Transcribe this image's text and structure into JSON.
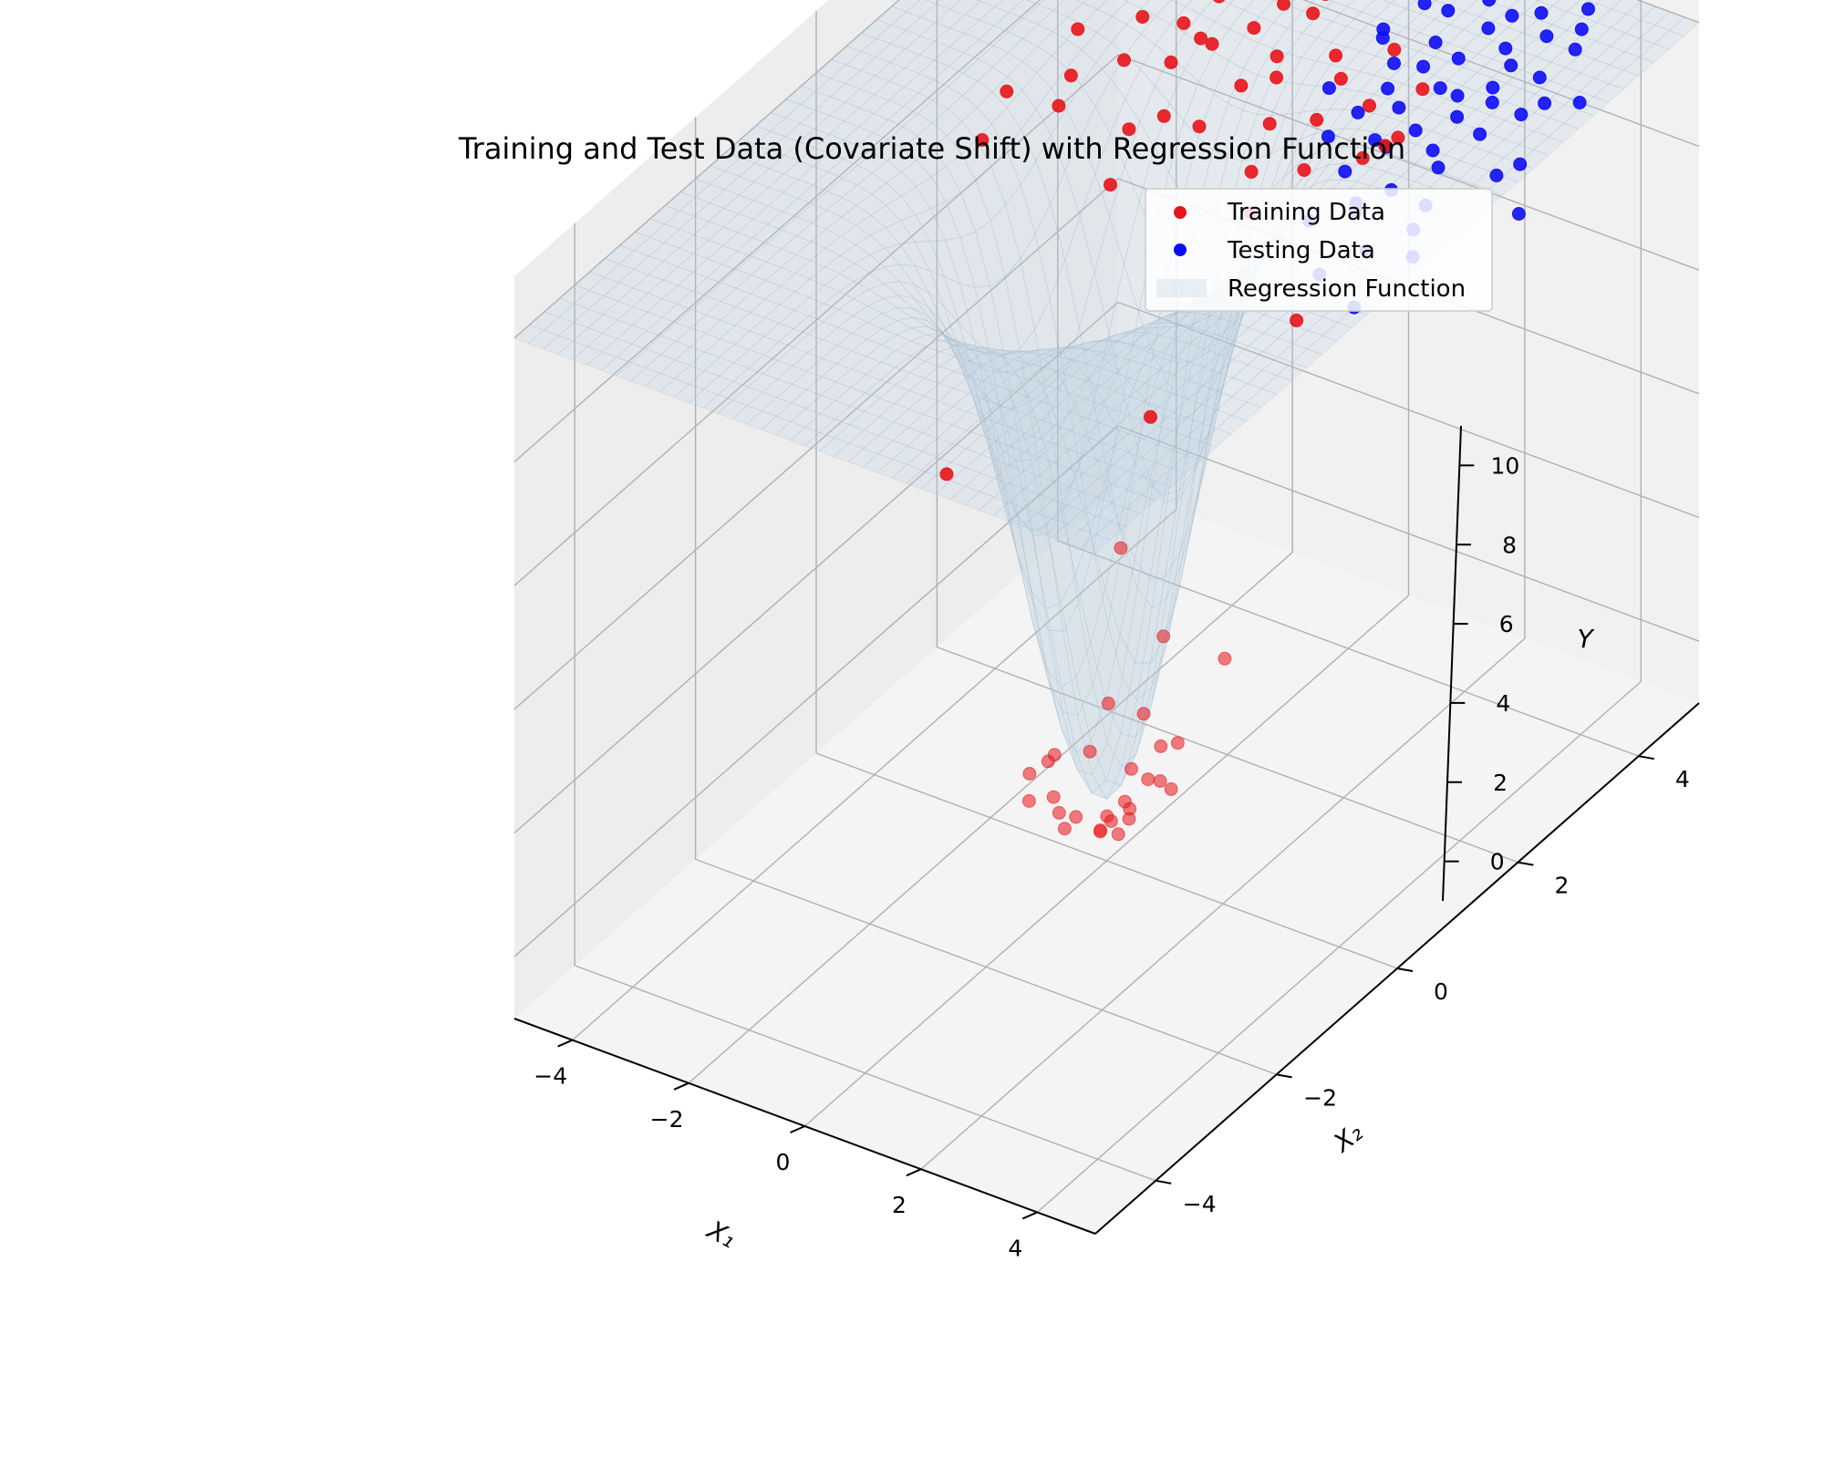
{
  "chart_data": {
    "type": "scatter",
    "subtype": "3d-scatter-with-surface",
    "title": "Training and Test Data (Covariate Shift) with Regression Function",
    "xlabel": "X₁",
    "ylabel": "X₂",
    "zlabel": "Y",
    "xlim": [
      -5,
      5
    ],
    "ylim": [
      -5,
      5
    ],
    "zlim": [
      -1,
      11
    ],
    "x_ticks": [
      -4,
      -2,
      0,
      2,
      4
    ],
    "y_ticks": [
      -4,
      -2,
      0,
      2,
      4
    ],
    "z_ticks": [
      0,
      2,
      4,
      6,
      8,
      10
    ],
    "x_tick_labels": [
      "−4",
      "−2",
      "0",
      "2",
      "4"
    ],
    "y_tick_labels": [
      "−4",
      "−2",
      "0",
      "2",
      "4"
    ],
    "z_tick_labels": [
      "0",
      "2",
      "4",
      "6",
      "8",
      "10"
    ],
    "grid": true,
    "legend_position": "top-right",
    "surface": {
      "name": "Regression Function",
      "formula": "10 - 10*exp(-(x1^2 + x2^2)/2)",
      "color": "#b8cfe0"
    },
    "series": [
      {
        "name": "Training Data",
        "color": "#e8141a",
        "points": [
          [
            -0.3,
            -0.5,
            0.1
          ],
          [
            0.2,
            -0.3,
            -0.2
          ],
          [
            -0.6,
            0.3,
            0.3
          ],
          [
            0.4,
            0.5,
            0.0
          ],
          [
            -0.1,
            0.1,
            -0.4
          ],
          [
            0.7,
            -0.6,
            0.4
          ],
          [
            -0.8,
            -0.2,
            0.5
          ],
          [
            0.1,
            0.8,
            0.2
          ],
          [
            -0.4,
            -0.9,
            0.6
          ],
          [
            0.9,
            0.2,
            0.3
          ],
          [
            -0.2,
            0.6,
            -0.1
          ],
          [
            0.5,
            -0.1,
            0.1
          ],
          [
            -0.7,
            0.7,
            0.7
          ],
          [
            0.3,
            -0.8,
            0.5
          ],
          [
            0.0,
            0.3,
            -0.3
          ],
          [
            -0.5,
            -0.4,
            0.2
          ],
          [
            0.6,
            0.6,
            0.6
          ],
          [
            -0.9,
            0.0,
            0.4
          ],
          [
            0.2,
            0.0,
            -0.5
          ],
          [
            -0.3,
            0.9,
            0.5
          ],
          [
            0.8,
            -0.4,
            0.3
          ],
          [
            -0.1,
            -0.6,
            0.0
          ],
          [
            0.4,
            0.3,
            0.2
          ],
          [
            -0.6,
            -0.7,
            0.8
          ],
          [
            0.1,
            -0.2,
            -0.3
          ],
          [
            1.2,
            0.8,
            2.0
          ],
          [
            -0.9,
            1.1,
            2.8
          ],
          [
            1.6,
            -0.6,
            3.7
          ],
          [
            -1.3,
            -1.4,
            6.0
          ],
          [
            1.5,
            1.7,
            6.8
          ],
          [
            2.0,
            -1.2,
            7.9
          ],
          [
            -1.8,
            2.1,
            8.4
          ],
          [
            2.3,
            2.4,
            9.3
          ],
          [
            -2.5,
            3.0,
            9.2
          ],
          [
            -3.2,
            2.6,
            9.1
          ],
          [
            -2.8,
            1.9,
            8.6
          ],
          [
            -3.6,
            1.4,
            8.2
          ],
          [
            -1.6,
            3.4,
            9.5
          ],
          [
            -2.1,
            3.9,
            9.8
          ],
          [
            -3.0,
            3.6,
            9.6
          ],
          [
            -1.2,
            2.9,
            9.3
          ],
          [
            -2.3,
            2.5,
            9.0
          ],
          [
            -1.9,
            4.2,
            9.9
          ],
          [
            -0.8,
            3.7,
            9.4
          ],
          [
            -2.7,
            4.4,
            9.7
          ],
          [
            -3.4,
            3.1,
            9.3
          ],
          [
            -1.4,
            4.6,
            9.9
          ],
          [
            -0.6,
            4.2,
            9.2
          ],
          [
            -2.0,
            3.2,
            9.1
          ],
          [
            -1.0,
            3.4,
            9.2
          ],
          [
            -2.9,
            2.2,
            8.8
          ],
          [
            -0.3,
            3.1,
            8.9
          ],
          [
            0.2,
            3.6,
            9.0
          ],
          [
            -0.9,
            2.4,
            8.5
          ],
          [
            0.6,
            2.9,
            8.7
          ],
          [
            -1.7,
            2.7,
            9.0
          ],
          [
            0.3,
            4.3,
            9.5
          ],
          [
            -0.5,
            3.3,
            9.0
          ],
          [
            1.0,
            3.8,
            9.2
          ],
          [
            -1.1,
            3.9,
            9.4
          ],
          [
            0.0,
            2.7,
            8.6
          ],
          [
            0.8,
            2.5,
            8.3
          ],
          [
            -0.2,
            4.7,
            9.7
          ],
          [
            1.3,
            3.1,
            9.0
          ],
          [
            -0.7,
            2.9,
            8.8
          ],
          [
            0.5,
            3.4,
            8.9
          ],
          [
            1.6,
            2.7,
            8.6
          ],
          [
            -1.5,
            3.0,
            9.2
          ],
          [
            0.9,
            4.5,
            9.6
          ],
          [
            -0.4,
            3.8,
            9.3
          ],
          [
            0.1,
            2.3,
            8.2
          ],
          [
            1.8,
            3.5,
            9.1
          ],
          [
            -1.3,
            2.2,
            8.7
          ],
          [
            0.4,
            2.0,
            7.9
          ],
          [
            2.0,
            2.9,
            8.9
          ],
          [
            -2.4,
            3.7,
            9.5
          ],
          [
            -1.6,
            1.6,
            8.0
          ],
          [
            -3.8,
            2.0,
            8.4
          ]
        ]
      },
      {
        "name": "Testing Data",
        "color": "#0d0df5",
        "points": [
          [
            1.4,
            4.1,
            9.2
          ],
          [
            2.0,
            3.6,
            9.1
          ],
          [
            1.8,
            4.6,
            9.6
          ],
          [
            2.5,
            4.2,
            9.4
          ],
          [
            1.1,
            3.7,
            9.1
          ],
          [
            2.2,
            3.0,
            9.0
          ],
          [
            1.6,
            3.3,
            8.9
          ],
          [
            2.8,
            3.7,
            9.3
          ],
          [
            0.9,
            4.4,
            9.4
          ],
          [
            2.4,
            4.8,
            9.8
          ],
          [
            1.3,
            4.9,
            9.7
          ],
          [
            3.0,
            4.4,
            9.6
          ],
          [
            1.9,
            2.8,
            8.8
          ],
          [
            2.6,
            3.3,
            9.1
          ],
          [
            0.7,
            3.9,
            9.2
          ],
          [
            3.2,
            3.1,
            9.2
          ],
          [
            2.1,
            4.3,
            9.5
          ],
          [
            1.5,
            3.0,
            8.6
          ],
          [
            2.9,
            2.7,
            8.9
          ],
          [
            1.2,
            4.5,
            9.3
          ],
          [
            3.4,
            3.9,
            9.5
          ],
          [
            2.3,
            2.5,
            8.5
          ],
          [
            1.7,
            5.0,
            9.9
          ],
          [
            0.6,
            4.8,
            9.5
          ],
          [
            3.6,
            3.4,
            9.4
          ],
          [
            2.7,
            4.6,
            9.7
          ],
          [
            1.0,
            3.2,
            8.7
          ],
          [
            2.0,
            2.2,
            8.3
          ],
          [
            3.1,
            2.3,
            8.7
          ],
          [
            1.4,
            2.6,
            8.4
          ],
          [
            3.8,
            2.8,
            9.0
          ],
          [
            2.5,
            1.9,
            8.1
          ],
          [
            0.8,
            2.9,
            8.5
          ],
          [
            3.3,
            4.8,
            9.8
          ],
          [
            1.9,
            4.0,
            9.2
          ],
          [
            2.4,
            3.5,
            9.2
          ],
          [
            1.6,
            4.7,
            9.6
          ],
          [
            2.8,
            4.0,
            9.4
          ],
          [
            1.2,
            3.5,
            8.9
          ],
          [
            3.0,
            3.5,
            9.3
          ],
          [
            2.2,
            4.9,
            9.8
          ],
          [
            0.5,
            4.1,
            9.1
          ],
          [
            3.5,
            4.5,
            9.8
          ],
          [
            1.8,
            2.4,
            8.2
          ],
          [
            2.6,
            2.9,
            8.9
          ],
          [
            3.9,
            3.5,
            9.6
          ],
          [
            4.1,
            2.9,
            9.2
          ],
          [
            4.4,
            3.6,
            9.7
          ],
          [
            2.9,
            5.0,
            10.0
          ],
          [
            3.7,
            4.2,
            9.8
          ],
          [
            1.0,
            4.9,
            9.4
          ],
          [
            2.3,
            4.5,
            9.6
          ],
          [
            1.5,
            3.8,
            9.1
          ],
          [
            3.2,
            2.0,
            8.6
          ],
          [
            4.6,
            2.4,
            9.0
          ],
          [
            2.0,
            1.6,
            7.8
          ],
          [
            1.3,
            2.1,
            8.0
          ],
          [
            0.4,
            3.3,
            8.8
          ],
          [
            3.4,
            1.8,
            8.4
          ],
          [
            2.7,
            1.5,
            7.6
          ]
        ]
      }
    ]
  }
}
